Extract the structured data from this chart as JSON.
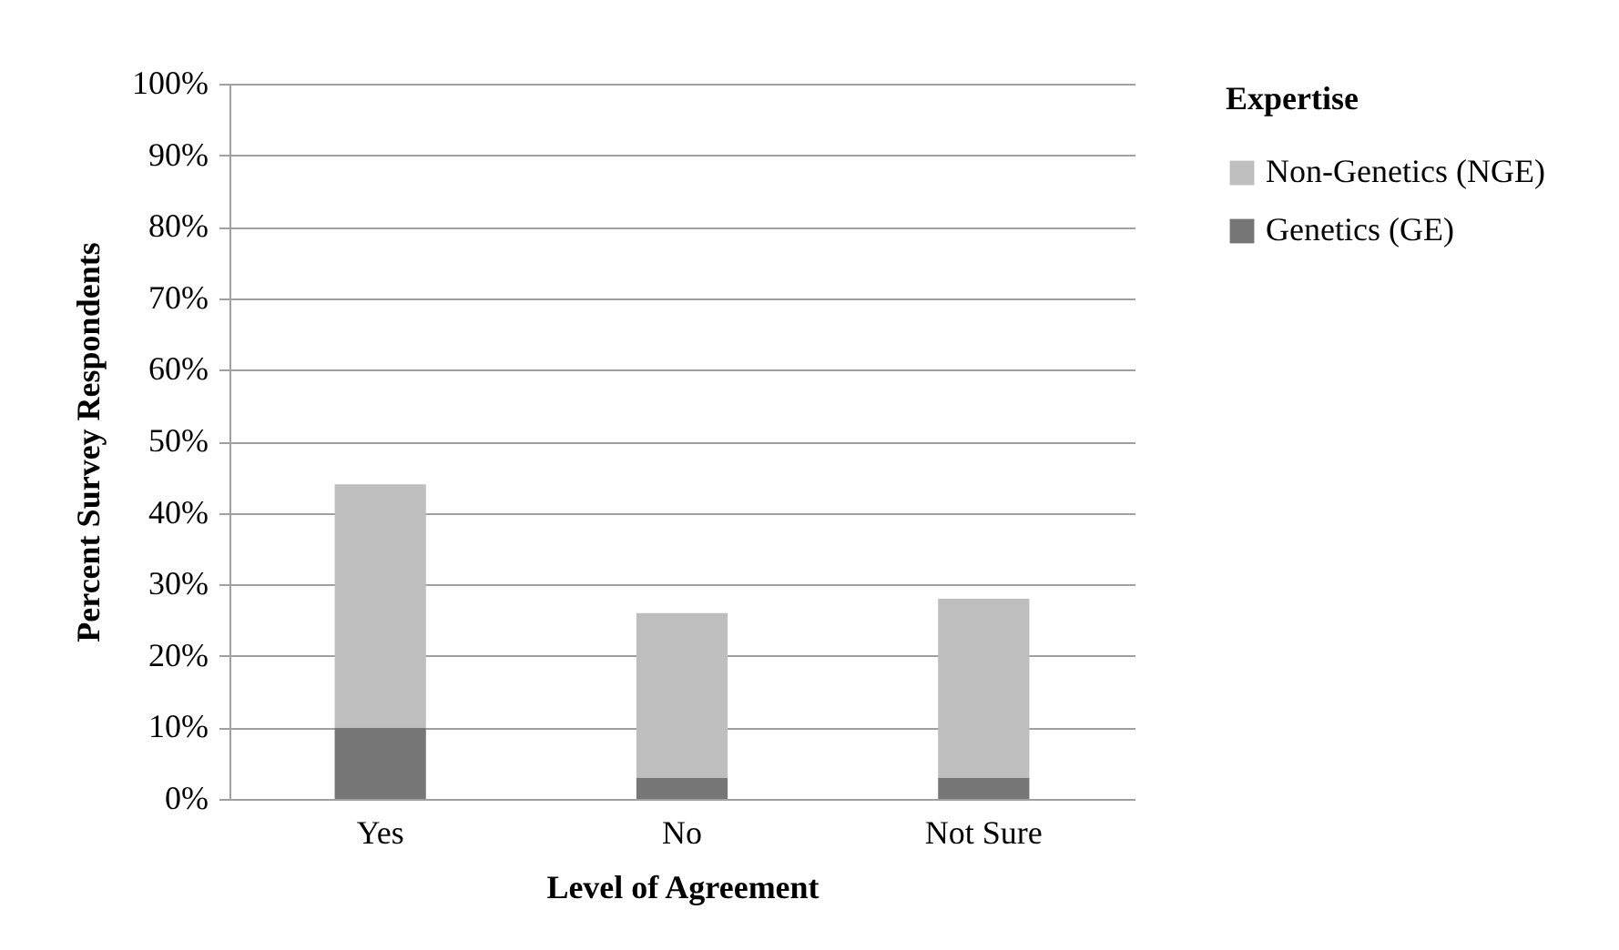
{
  "chart_data": {
    "type": "bar",
    "stacked": true,
    "xlabel": "Level of Agreement",
    "ylabel": "Percent Survey Respondents",
    "legend_title": "Expertise",
    "categories": [
      "Yes",
      "No",
      "Not Sure"
    ],
    "series": [
      {
        "name": "Genetics (GE)",
        "color": "#767676",
        "values": [
          10,
          3,
          3
        ]
      },
      {
        "name": "Non-Genetics (NGE)",
        "color": "#bebebe",
        "values": [
          34,
          23,
          25
        ]
      }
    ],
    "ylim": [
      0,
      100
    ],
    "yticks": [
      {
        "value": 0,
        "label": "0%"
      },
      {
        "value": 10,
        "label": "10%"
      },
      {
        "value": 20,
        "label": "20%"
      },
      {
        "value": 30,
        "label": "30%"
      },
      {
        "value": 40,
        "label": "40%"
      },
      {
        "value": 50,
        "label": "50%"
      },
      {
        "value": 60,
        "label": "60%"
      },
      {
        "value": 70,
        "label": "70%"
      },
      {
        "value": 80,
        "label": "80%"
      },
      {
        "value": 90,
        "label": "90%"
      },
      {
        "value": 100,
        "label": "100%"
      }
    ],
    "grid": "y",
    "legend": "right"
  }
}
